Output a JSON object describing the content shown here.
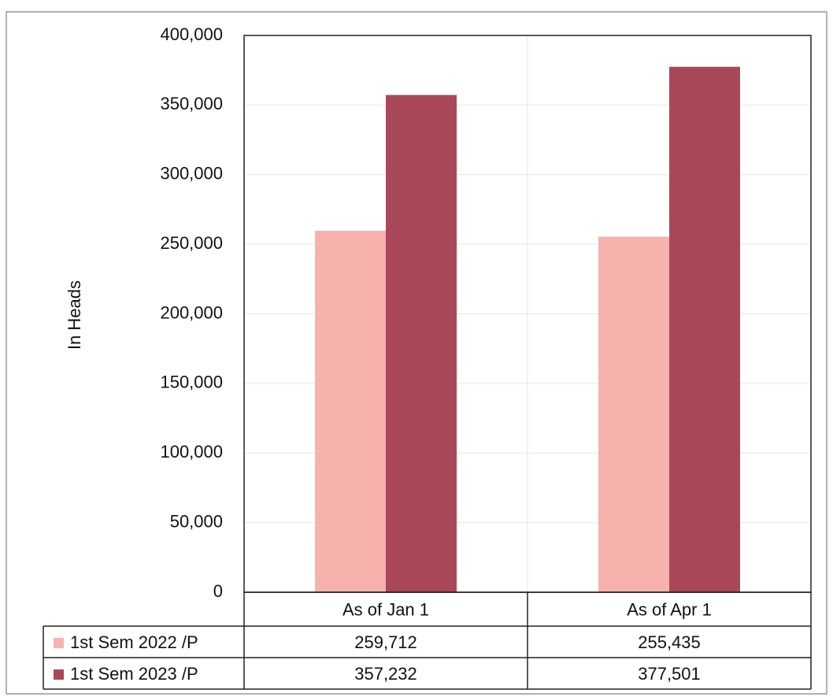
{
  "chart_data": {
    "type": "bar",
    "y_label": "In Heads",
    "categories": [
      "As of Jan 1",
      "As of Apr 1"
    ],
    "series": [
      {
        "name": "1st Sem 2022 /P",
        "color": "#f7b2ae",
        "values": [
          259712,
          255435
        ],
        "value_labels": [
          "259,712",
          "255,435"
        ]
      },
      {
        "name": "1st Sem 2023 /P",
        "color": "#a84858",
        "values": [
          357232,
          377501
        ],
        "value_labels": [
          "357,232",
          "377,501"
        ]
      }
    ],
    "ylim": [
      0,
      400000
    ],
    "yticks": [
      0,
      {
        "value": 50000,
        "label": "50,000"
      },
      {
        "value": 100000,
        "label": "100,000"
      },
      {
        "value": 150000,
        "label": "150,000"
      },
      {
        "value": 200000,
        "label": "200,000"
      },
      {
        "value": 250000,
        "label": "250,000"
      },
      {
        "value": 300000,
        "label": "300,000"
      },
      {
        "value": 350000,
        "label": "350,000"
      },
      {
        "value": 400000,
        "label": "400,000"
      }
    ],
    "grid": true
  }
}
